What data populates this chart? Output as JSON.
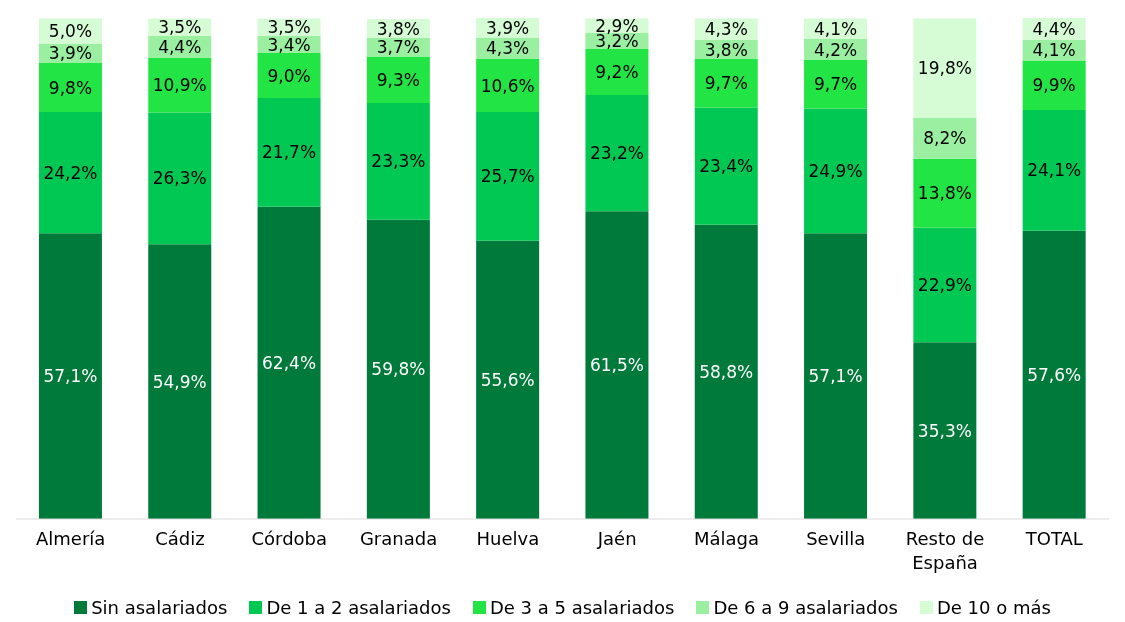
{
  "chart_data": {
    "type": "bar",
    "stacked": true,
    "legend": "bottom",
    "grid": false,
    "categories": [
      "Almería",
      "Cádiz",
      "Córdoba",
      "Granada",
      "Huelva",
      "Jaén",
      "Málaga",
      "Sevilla",
      "Resto de España",
      "TOTAL"
    ],
    "series": [
      {
        "name": "Sin asalariados",
        "color": "#007a3a",
        "values": [
          57.1,
          54.9,
          62.4,
          59.8,
          55.6,
          61.5,
          58.8,
          57.1,
          35.3,
          57.6
        ],
        "value_labels": [
          "57,1%",
          "54,9%",
          "62,4%",
          "59,8%",
          "55,6%",
          "61,5%",
          "58,8%",
          "57,1%",
          "35,3%",
          "57,6%"
        ]
      },
      {
        "name": "De 1 a 2 asalariados",
        "color": "#00c853",
        "values": [
          24.2,
          26.3,
          21.7,
          23.3,
          25.7,
          23.2,
          23.4,
          24.9,
          22.9,
          24.1
        ],
        "value_labels": [
          "24,2%",
          "26,3%",
          "21,7%",
          "23,3%",
          "25,7%",
          "23,2%",
          "23,4%",
          "24,9%",
          "22,9%",
          "24,1%"
        ]
      },
      {
        "name": "De 3 a 5 asalariados",
        "color": "#22e445",
        "values": [
          9.8,
          10.9,
          9.0,
          9.3,
          10.6,
          9.2,
          9.7,
          9.7,
          13.8,
          9.9
        ],
        "value_labels": [
          "9,8%",
          "10,9%",
          "9,0%",
          "9,3%",
          "10,6%",
          "9,2%",
          "9,7%",
          "9,7%",
          "13,8%",
          "9,9%"
        ]
      },
      {
        "name": "De 6 a 9 asalariados",
        "color": "#9af0a0",
        "values": [
          3.9,
          4.4,
          3.4,
          3.7,
          4.3,
          3.2,
          3.8,
          4.2,
          8.2,
          4.1
        ],
        "value_labels": [
          "3,9%",
          "4,4%",
          "3,4%",
          "3,7%",
          "4,3%",
          "3,2%",
          "3,8%",
          "4,2%",
          "8,2%",
          "4,1%"
        ]
      },
      {
        "name": "De 10 o más",
        "color": "#d6fcd6",
        "values": [
          5.0,
          3.5,
          3.5,
          3.8,
          3.9,
          2.9,
          4.3,
          4.1,
          19.8,
          4.4
        ],
        "value_labels": [
          "5,0%",
          "3,5%",
          "3,5%",
          "3,8%",
          "3,9%",
          "2,9%",
          "4,3%",
          "4,1%",
          "19,8%",
          "4,4%"
        ]
      }
    ]
  }
}
